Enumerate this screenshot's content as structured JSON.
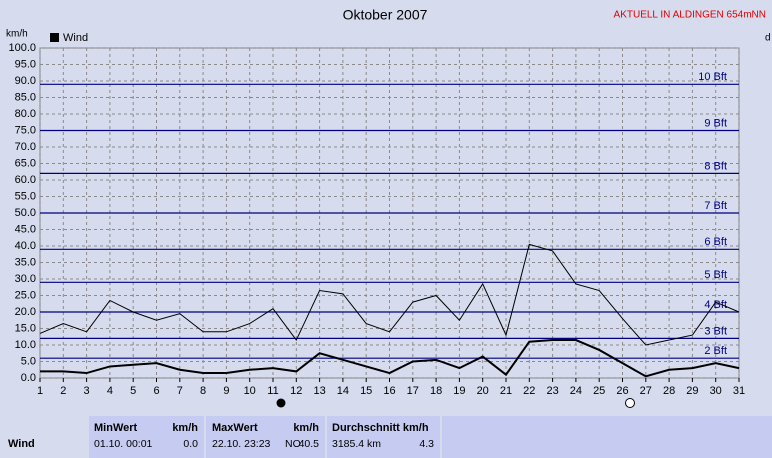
{
  "chart_data": {
    "type": "line",
    "title": "Oktober 2007",
    "subtitle": "AKTUELL IN ALDINGEN 654mNN",
    "ylabel": "km/h",
    "y2label": "d",
    "x": [
      1,
      2,
      3,
      4,
      5,
      6,
      7,
      8,
      9,
      10,
      11,
      12,
      13,
      14,
      15,
      16,
      17,
      18,
      19,
      20,
      21,
      22,
      23,
      24,
      25,
      26,
      27,
      28,
      29,
      30,
      31
    ],
    "xlim": [
      1,
      31
    ],
    "ylim": [
      0,
      100
    ],
    "yticks": [
      {
        "value": 0,
        "label": "0.0"
      },
      {
        "value": 5,
        "label": "5.0"
      },
      {
        "value": 10,
        "label": "10.0"
      },
      {
        "value": 15,
        "label": "15.0"
      },
      {
        "value": 20,
        "label": "20.0"
      },
      {
        "value": 25,
        "label": "25.0"
      },
      {
        "value": 30,
        "label": "30.0"
      },
      {
        "value": 35,
        "label": "35.0"
      },
      {
        "value": 40,
        "label": "40.0"
      },
      {
        "value": 45,
        "label": "45.0"
      },
      {
        "value": 50,
        "label": "50.0"
      },
      {
        "value": 55,
        "label": "55.0"
      },
      {
        "value": 60,
        "label": "60.0"
      },
      {
        "value": 65,
        "label": "65.0"
      },
      {
        "value": 70,
        "label": "70.0"
      },
      {
        "value": 75,
        "label": "75.0"
      },
      {
        "value": 80,
        "label": "80.0"
      },
      {
        "value": 85,
        "label": "85.0"
      },
      {
        "value": 90,
        "label": "90.0"
      },
      {
        "value": 95,
        "label": "95.0"
      },
      {
        "value": 100,
        "label": "100.0"
      }
    ],
    "grid": true,
    "legend": "top-left",
    "reference_lines": {
      "color": "#000080",
      "lines": [
        {
          "value": 6,
          "label": "2 Bft"
        },
        {
          "value": 12,
          "label": "3 Bft"
        },
        {
          "value": 20,
          "label": "4 Bft"
        },
        {
          "value": 29,
          "label": "5 Bft"
        },
        {
          "value": 39,
          "label": "6 Bft"
        },
        {
          "value": 50,
          "label": "7 Bft"
        },
        {
          "value": 62,
          "label": "8 Bft"
        },
        {
          "value": 75,
          "label": "9 Bft"
        },
        {
          "value": 89,
          "label": "10 Bft"
        }
      ]
    },
    "series": [
      {
        "name": "Wind",
        "color": "#000000",
        "width": 1,
        "values": [
          13.5,
          16.5,
          14,
          23.5,
          20,
          17.5,
          19.5,
          14,
          14,
          16.5,
          21,
          11.5,
          26.5,
          25.5,
          16.5,
          14,
          23,
          25,
          17.5,
          28.5,
          13,
          40.5,
          38.5,
          28.5,
          26.5,
          18,
          10,
          11.5,
          13,
          23,
          20
        ]
      },
      {
        "color": "#000000",
        "width": 2,
        "values": [
          2,
          2,
          1.5,
          3.5,
          4,
          4.5,
          2.5,
          1.5,
          1.5,
          2.5,
          3,
          2,
          7.5,
          5.5,
          3.5,
          1.5,
          5,
          5.5,
          3,
          6.5,
          1,
          11,
          11.5,
          11.5,
          8.5,
          4.5,
          0.5,
          2.5,
          3,
          4.5,
          3
        ]
      }
    ]
  },
  "stats_table": {
    "row_label": "Wind",
    "columns": [
      {
        "header": [
          "MinWert",
          "km/h"
        ],
        "cells": [
          "01.10.  00:01",
          "0.0"
        ]
      },
      {
        "header": [
          "MaxWert",
          "km/h"
        ],
        "cells": [
          "22.10.  23:23",
          "NO",
          "40.5"
        ]
      },
      {
        "header": [
          "Durchschnitt km/h"
        ],
        "cells": [
          "3185.4 km",
          "4.3"
        ]
      }
    ]
  }
}
